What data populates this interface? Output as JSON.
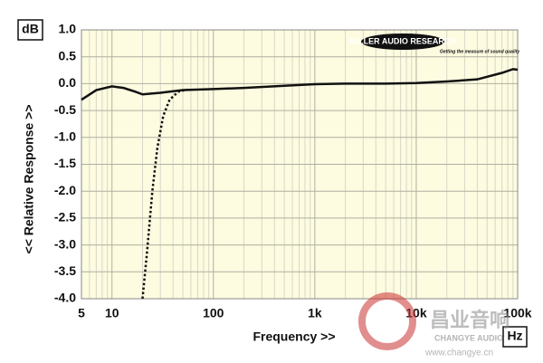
{
  "chart_data": {
    "type": "line",
    "y_unit": "dB",
    "ylabel": "<< Relative Response >>",
    "xlabel": "Frequency >>",
    "x_unit": "Hz",
    "logo": "MILLER AUDIO RESEARCH",
    "logo_tagline": "Getting the measure of sound quality",
    "watermark": "昌业音响",
    "watermark_sub": "CHANGYE AUDIO",
    "watermark_url": "www.changye.cn",
    "xscale": "log",
    "grid": true,
    "background": "#fdfbe0",
    "xlim": [
      5,
      100000
    ],
    "ylim": [
      -4,
      1
    ],
    "xticks": [
      5,
      10,
      100,
      {
        "value": 1000,
        "label": "1k"
      },
      {
        "value": 10000,
        "label": "10k"
      },
      {
        "value": 100000,
        "label": "100k"
      }
    ],
    "xminor": [
      6,
      7,
      8,
      9,
      20,
      30,
      40,
      50,
      60,
      70,
      80,
      90,
      200,
      300,
      400,
      500,
      600,
      700,
      800,
      900,
      2000,
      3000,
      4000,
      5000,
      6000,
      7000,
      8000,
      9000,
      20000,
      30000,
      40000,
      50000,
      60000,
      70000,
      80000,
      90000
    ],
    "yticks": [
      {
        "value": 1,
        "label": "1.0"
      },
      0.5,
      {
        "value": 0,
        "label": "0.0"
      },
      -0.5,
      {
        "value": -1,
        "label": "-1.0"
      },
      -1.5,
      {
        "value": -2,
        "label": "-2.0"
      },
      -2.5,
      {
        "value": -3,
        "label": "-3.0"
      },
      -3.5,
      {
        "value": -4,
        "label": "-4.0"
      }
    ],
    "series": [
      {
        "color": "#111111",
        "dash": "solid",
        "x": [
          5,
          7,
          10,
          13,
          17,
          20,
          30,
          50,
          100,
          200,
          500,
          1000,
          2000,
          5000,
          10000,
          20000,
          40000,
          70000,
          90000,
          100000
        ],
        "values": [
          -0.3,
          -0.12,
          -0.05,
          -0.08,
          -0.15,
          -0.2,
          -0.17,
          -0.12,
          -0.1,
          -0.08,
          -0.04,
          -0.01,
          0.0,
          0.0,
          0.01,
          0.04,
          0.08,
          0.2,
          0.27,
          0.26
        ]
      },
      {
        "color": "#111111",
        "dash": "dotted",
        "x": [
          20,
          22,
          25,
          28,
          32,
          37,
          45,
          55
        ],
        "values": [
          -4.0,
          -3.2,
          -2.0,
          -1.2,
          -0.6,
          -0.3,
          -0.15,
          -0.11
        ]
      }
    ]
  }
}
